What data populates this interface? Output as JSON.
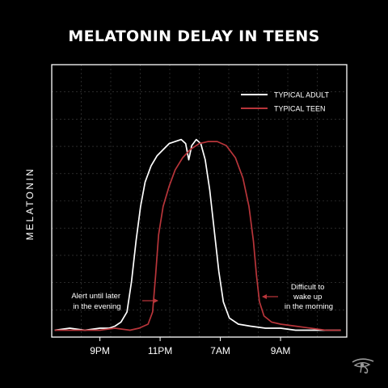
{
  "title": "MELATONIN DELAY IN TEENS",
  "colors": {
    "adult": "#ffffff",
    "teen": "#b8353a",
    "background": "#000000",
    "grid": "#444444"
  },
  "logo_icon": "eye-of-horus-icon",
  "chart_data": {
    "type": "line",
    "title": "MELATONIN DELAY IN TEENS",
    "ylabel": "MELATONIN",
    "xlabel": "",
    "x_ticks": [
      "9PM",
      "11PM",
      "7AM",
      "9AM"
    ],
    "x_tick_positions": [
      1,
      3,
      5,
      7
    ],
    "xlim": [
      -0.6,
      9.2
    ],
    "ylim": [
      0,
      1
    ],
    "grid": true,
    "legend_position": "top-right",
    "series": [
      {
        "name": "TYPICAL ADULT",
        "color": "#ffffff",
        "points": [
          [
            -0.5,
            0.01
          ],
          [
            0.0,
            0.02
          ],
          [
            0.5,
            0.01
          ],
          [
            1.0,
            0.02
          ],
          [
            1.3,
            0.02
          ],
          [
            1.5,
            0.03
          ],
          [
            1.7,
            0.05
          ],
          [
            1.9,
            0.1
          ],
          [
            2.05,
            0.25
          ],
          [
            2.2,
            0.45
          ],
          [
            2.35,
            0.62
          ],
          [
            2.5,
            0.74
          ],
          [
            2.7,
            0.82
          ],
          [
            2.9,
            0.87
          ],
          [
            3.1,
            0.9
          ],
          [
            3.3,
            0.93
          ],
          [
            3.5,
            0.94
          ],
          [
            3.7,
            0.95
          ],
          [
            3.85,
            0.93
          ],
          [
            3.95,
            0.85
          ],
          [
            4.05,
            0.92
          ],
          [
            4.2,
            0.95
          ],
          [
            4.35,
            0.93
          ],
          [
            4.5,
            0.85
          ],
          [
            4.65,
            0.7
          ],
          [
            4.8,
            0.5
          ],
          [
            4.95,
            0.3
          ],
          [
            5.1,
            0.15
          ],
          [
            5.3,
            0.07
          ],
          [
            5.6,
            0.04
          ],
          [
            6.0,
            0.03
          ],
          [
            6.5,
            0.02
          ],
          [
            7.0,
            0.02
          ],
          [
            7.5,
            0.01
          ],
          [
            8.0,
            0.01
          ],
          [
            8.5,
            0.01
          ],
          [
            9.0,
            0.01
          ]
        ]
      },
      {
        "name": "TYPICAL TEEN",
        "color": "#b8353a",
        "points": [
          [
            -0.5,
            0.01
          ],
          [
            0.0,
            0.01
          ],
          [
            0.5,
            0.01
          ],
          [
            1.0,
            0.01
          ],
          [
            1.5,
            0.02
          ],
          [
            2.0,
            0.01
          ],
          [
            2.3,
            0.02
          ],
          [
            2.6,
            0.04
          ],
          [
            2.75,
            0.1
          ],
          [
            2.85,
            0.28
          ],
          [
            2.95,
            0.48
          ],
          [
            3.1,
            0.62
          ],
          [
            3.3,
            0.72
          ],
          [
            3.5,
            0.8
          ],
          [
            3.75,
            0.86
          ],
          [
            4.0,
            0.9
          ],
          [
            4.3,
            0.93
          ],
          [
            4.6,
            0.94
          ],
          [
            4.9,
            0.94
          ],
          [
            5.2,
            0.92
          ],
          [
            5.5,
            0.86
          ],
          [
            5.75,
            0.76
          ],
          [
            5.95,
            0.62
          ],
          [
            6.1,
            0.45
          ],
          [
            6.2,
            0.28
          ],
          [
            6.3,
            0.15
          ],
          [
            6.45,
            0.08
          ],
          [
            6.7,
            0.05
          ],
          [
            7.0,
            0.04
          ],
          [
            7.5,
            0.03
          ],
          [
            8.0,
            0.02
          ],
          [
            8.5,
            0.01
          ],
          [
            9.0,
            0.01
          ]
        ]
      }
    ],
    "annotations": [
      {
        "lines": [
          "Alert until later",
          "in the evening"
        ],
        "target_series": "TYPICAL TEEN"
      },
      {
        "lines": [
          "Difficult to",
          "wake up",
          "in the morning"
        ],
        "target_series": "TYPICAL TEEN"
      }
    ]
  }
}
